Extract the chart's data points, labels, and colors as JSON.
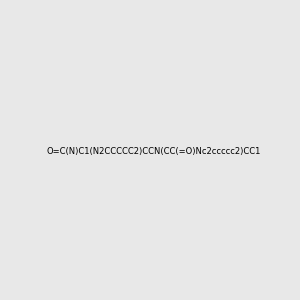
{
  "smiles": "O=C(N)C1(N2CCCCC2)CCN(CC(=O)Nc2ccccc2)CC1",
  "image_size": 300,
  "background_color": "#e8e8e8",
  "title": ""
}
